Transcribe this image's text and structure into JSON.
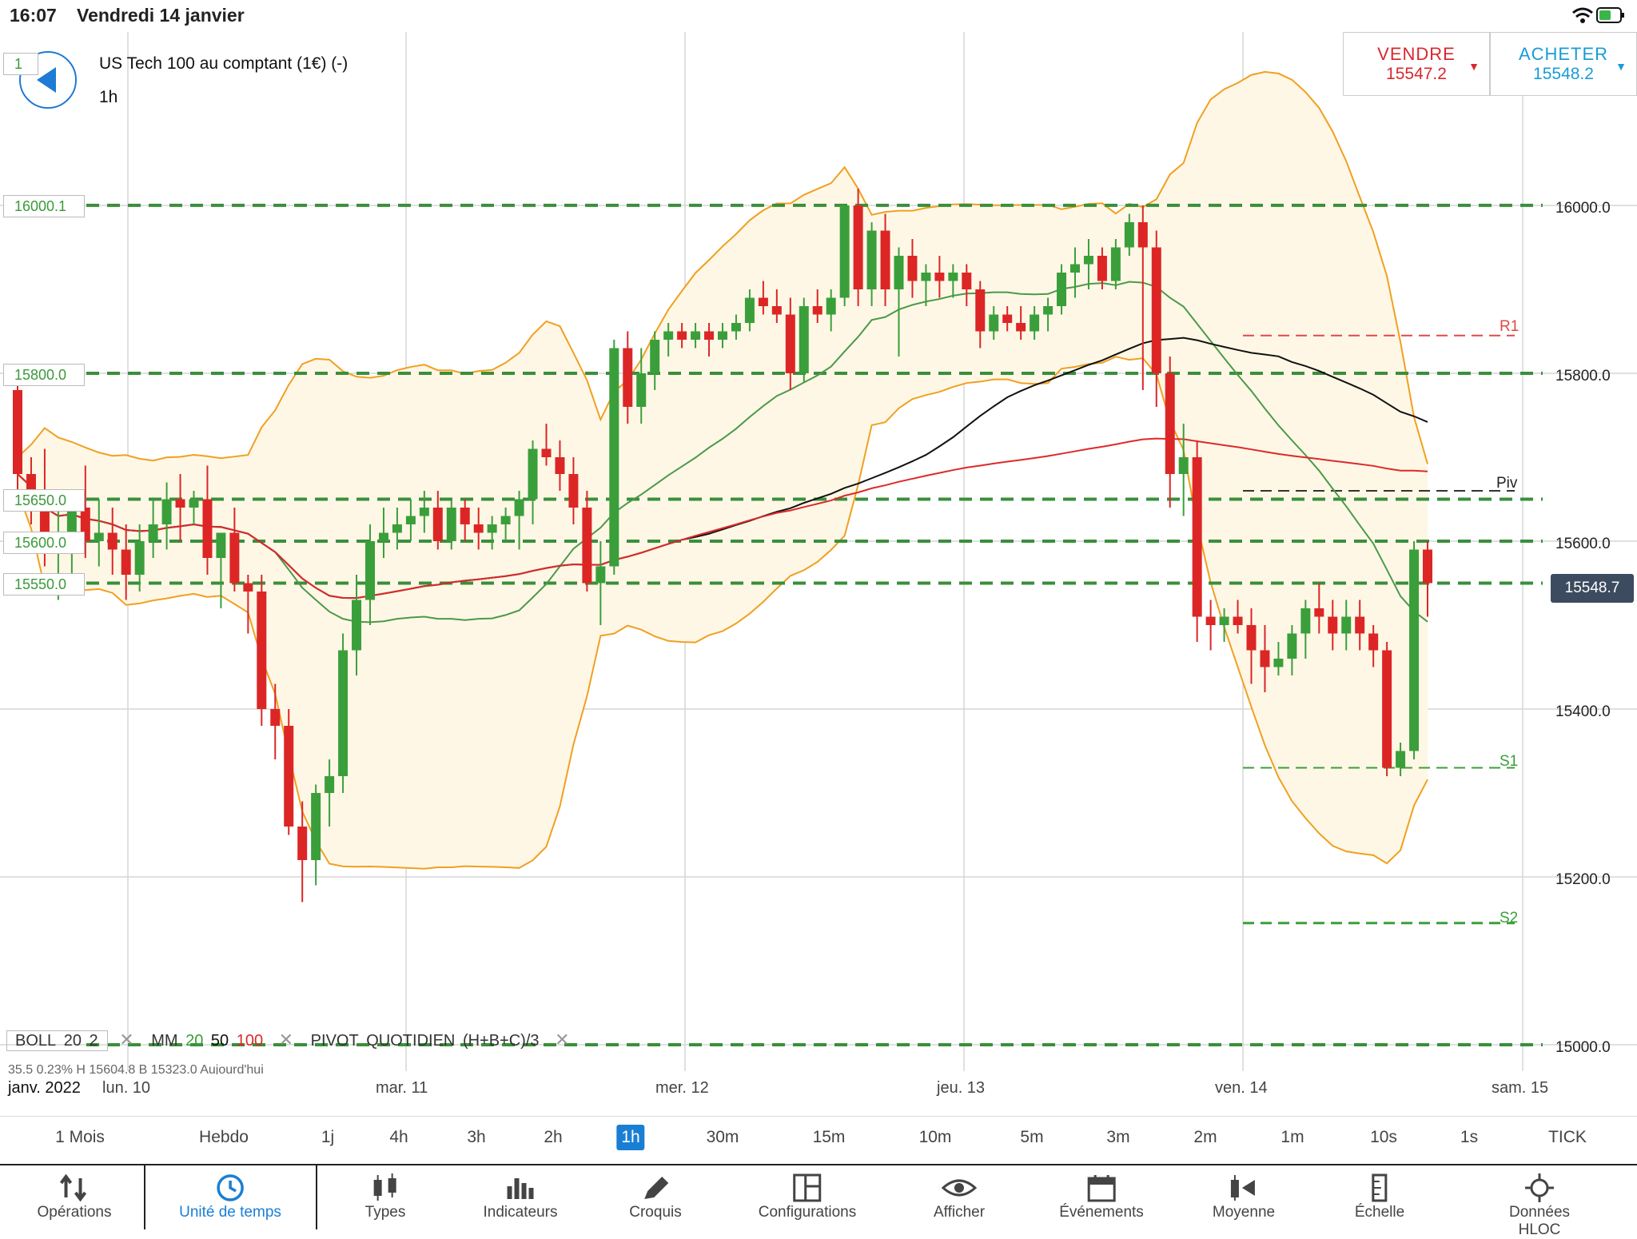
{
  "status": {
    "time": "16:07",
    "date": "Vendredi 14 janvier"
  },
  "header": {
    "instrument": "US Tech 100 au comptant (1€) (-)",
    "timeframe": "1h"
  },
  "trade": {
    "sell_label": "VENDRE",
    "sell_price": "15547.2",
    "buy_label": "ACHETER",
    "buy_price": "15548.2",
    "sell_color": "#d9272e",
    "buy_color": "#1a9bd7"
  },
  "levels_left": {
    "l1": "1",
    "l2": "16000.1",
    "l3": "15800.0",
    "l4": "15650.0",
    "l5": "15600.0",
    "l6": "15550.0"
  },
  "price_axis": {
    "p16000": "16000.0",
    "p15800": "15800.0",
    "p15600": "15600.0",
    "p15400": "15400.0",
    "p15200": "15200.0",
    "p15000": "15000.0"
  },
  "current_price": "15548.7",
  "pivots": {
    "r1": "R1",
    "piv": "Piv",
    "s1": "S1",
    "s2": "S2"
  },
  "indicators": {
    "boll": "BOLL",
    "boll_p1": "20",
    "boll_p2": "2",
    "mm": "MM",
    "mm_p1": "20",
    "mm_p2": "50",
    "mm_p3": "100",
    "pivot": "PIVOT",
    "pivot_type": "QUOTIDIEN",
    "pivot_formula": "(H+B+C)/3",
    "stats": "35.5      0.23%      H 15604.8    B 15323.0    Aujourd'hui"
  },
  "x_axis": {
    "month": "janv. 2022",
    "d1": "lun. 10",
    "d2": "mar. 11",
    "d3": "mer. 12",
    "d4": "jeu. 13",
    "d5": "ven. 14",
    "d6": "sam. 15"
  },
  "timeframes": {
    "t1": "1 Mois",
    "t2": "Hebdo",
    "t3": "1j",
    "t4": "4h",
    "t5": "3h",
    "t6": "2h",
    "t7": "1h",
    "t8": "30m",
    "t9": "15m",
    "t10": "10m",
    "t11": "5m",
    "t12": "3m",
    "t13": "2m",
    "t14": "1m",
    "t15": "10s",
    "t16": "1s",
    "t17": "TICK"
  },
  "toolbar": {
    "operations": "Opérations",
    "unite": "Unité de temps",
    "types": "Types",
    "indicateurs": "Indicateurs",
    "croquis": "Croquis",
    "configurations": "Configurations",
    "afficher": "Afficher",
    "evenements": "Événements",
    "moyenne": "Moyenne",
    "echelle": "Échelle",
    "hloc": "Données HLOC"
  },
  "colors": {
    "up": "#3a9f3a",
    "down": "#dc2626",
    "boll": "#f0a020",
    "mm20": "#4a9a4a",
    "mm50": "#111111",
    "mm100": "#dc2a2a",
    "accent": "#1a7fd4"
  },
  "chart_data": {
    "type": "candlestick",
    "timeframe": "1h",
    "y_ticks": [
      15000,
      15200,
      15400,
      15600,
      15800,
      16000
    ],
    "ylim": [
      14975,
      16200
    ],
    "horizontal_levels": [
      16000.1,
      15800.0,
      15650.0,
      15600.0,
      15550.0,
      15000.0
    ],
    "pivot_levels": {
      "R1": 15845,
      "Piv": 15660,
      "S1": 15330,
      "S2": 15145
    },
    "x_labels": [
      "lun. 10",
      "mar. 11",
      "mer. 12",
      "jeu. 13",
      "ven. 14",
      "sam. 15"
    ],
    "candles": [
      [
        15780,
        15810,
        15660,
        15680
      ],
      [
        15680,
        15700,
        15620,
        15650
      ],
      [
        15650,
        15710,
        15570,
        15590
      ],
      [
        15590,
        15650,
        15530,
        15600
      ],
      [
        15600,
        15660,
        15560,
        15640
      ],
      [
        15640,
        15690,
        15580,
        15600
      ],
      [
        15600,
        15650,
        15570,
        15610
      ],
      [
        15610,
        15640,
        15560,
        15590
      ],
      [
        15590,
        15620,
        15530,
        15560
      ],
      [
        15560,
        15620,
        15540,
        15600
      ],
      [
        15600,
        15650,
        15580,
        15620
      ],
      [
        15620,
        15670,
        15590,
        15650
      ],
      [
        15650,
        15680,
        15600,
        15640
      ],
      [
        15640,
        15660,
        15620,
        15650
      ],
      [
        15650,
        15690,
        15560,
        15580
      ],
      [
        15580,
        15610,
        15520,
        15610
      ],
      [
        15610,
        15640,
        15540,
        15550
      ],
      [
        15550,
        15560,
        15490,
        15540
      ],
      [
        15540,
        15560,
        15380,
        15400
      ],
      [
        15400,
        15430,
        15340,
        15380
      ],
      [
        15380,
        15400,
        15250,
        15260
      ],
      [
        15260,
        15290,
        15170,
        15220
      ],
      [
        15220,
        15310,
        15190,
        15300
      ],
      [
        15300,
        15340,
        15260,
        15320
      ],
      [
        15320,
        15490,
        15300,
        15470
      ],
      [
        15470,
        15560,
        15440,
        15530
      ],
      [
        15530,
        15620,
        15500,
        15600
      ],
      [
        15600,
        15640,
        15580,
        15610
      ],
      [
        15610,
        15640,
        15590,
        15620
      ],
      [
        15620,
        15650,
        15600,
        15630
      ],
      [
        15630,
        15660,
        15610,
        15640
      ],
      [
        15640,
        15660,
        15590,
        15600
      ],
      [
        15600,
        15650,
        15590,
        15640
      ],
      [
        15640,
        15650,
        15600,
        15620
      ],
      [
        15620,
        15640,
        15590,
        15610
      ],
      [
        15610,
        15630,
        15590,
        15620
      ],
      [
        15620,
        15640,
        15600,
        15630
      ],
      [
        15630,
        15660,
        15590,
        15650
      ],
      [
        15650,
        15720,
        15620,
        15710
      ],
      [
        15710,
        15740,
        15690,
        15700
      ],
      [
        15700,
        15720,
        15660,
        15680
      ],
      [
        15680,
        15700,
        15620,
        15640
      ],
      [
        15640,
        15660,
        15540,
        15550
      ],
      [
        15550,
        15600,
        15500,
        15570
      ],
      [
        15570,
        15840,
        15560,
        15830
      ],
      [
        15830,
        15850,
        15740,
        15760
      ],
      [
        15760,
        15830,
        15740,
        15800
      ],
      [
        15800,
        15850,
        15780,
        15840
      ],
      [
        15840,
        15860,
        15820,
        15850
      ],
      [
        15850,
        15860,
        15830,
        15840
      ],
      [
        15840,
        15860,
        15830,
        15850
      ],
      [
        15850,
        15860,
        15820,
        15840
      ],
      [
        15840,
        15860,
        15830,
        15850
      ],
      [
        15850,
        15870,
        15840,
        15860
      ],
      [
        15860,
        15900,
        15850,
        15890
      ],
      [
        15890,
        15910,
        15870,
        15880
      ],
      [
        15880,
        15900,
        15860,
        15870
      ],
      [
        15870,
        15890,
        15780,
        15800
      ],
      [
        15800,
        15890,
        15790,
        15880
      ],
      [
        15880,
        15900,
        15860,
        15870
      ],
      [
        15870,
        15900,
        15850,
        15890
      ],
      [
        15890,
        15990,
        15880,
        16000
      ],
      [
        16000,
        16020,
        15880,
        15900
      ],
      [
        15900,
        15980,
        15880,
        15970
      ],
      [
        15970,
        15990,
        15880,
        15900
      ],
      [
        15900,
        15950,
        15820,
        15940
      ],
      [
        15940,
        15960,
        15890,
        15910
      ],
      [
        15910,
        15930,
        15880,
        15920
      ],
      [
        15920,
        15940,
        15890,
        15910
      ],
      [
        15910,
        15930,
        15890,
        15920
      ],
      [
        15920,
        15930,
        15880,
        15900
      ],
      [
        15900,
        15910,
        15830,
        15850
      ],
      [
        15850,
        15880,
        15840,
        15870
      ],
      [
        15870,
        15880,
        15850,
        15860
      ],
      [
        15860,
        15880,
        15840,
        15850
      ],
      [
        15850,
        15880,
        15840,
        15870
      ],
      [
        15870,
        15890,
        15850,
        15880
      ],
      [
        15880,
        15930,
        15870,
        15920
      ],
      [
        15920,
        15950,
        15890,
        15930
      ],
      [
        15930,
        15960,
        15900,
        15940
      ],
      [
        15940,
        15950,
        15900,
        15910
      ],
      [
        15910,
        15960,
        15900,
        15950
      ],
      [
        15950,
        15990,
        15940,
        15980
      ],
      [
        15980,
        16000,
        15780,
        15950
      ],
      [
        15950,
        15970,
        15760,
        15800
      ],
      [
        15800,
        15820,
        15640,
        15680
      ],
      [
        15680,
        15740,
        15630,
        15700
      ],
      [
        15700,
        15720,
        15480,
        15510
      ],
      [
        15510,
        15530,
        15470,
        15500
      ],
      [
        15500,
        15520,
        15480,
        15510
      ],
      [
        15510,
        15530,
        15490,
        15500
      ],
      [
        15500,
        15520,
        15430,
        15470
      ],
      [
        15470,
        15500,
        15420,
        15450
      ],
      [
        15450,
        15480,
        15440,
        15460
      ],
      [
        15460,
        15500,
        15440,
        15490
      ],
      [
        15490,
        15530,
        15460,
        15520
      ],
      [
        15520,
        15550,
        15490,
        15510
      ],
      [
        15510,
        15530,
        15470,
        15490
      ],
      [
        15490,
        15530,
        15470,
        15510
      ],
      [
        15510,
        15530,
        15470,
        15490
      ],
      [
        15490,
        15500,
        15450,
        15470
      ],
      [
        15470,
        15480,
        15320,
        15330
      ],
      [
        15330,
        15360,
        15320,
        15350
      ],
      [
        15350,
        15600,
        15340,
        15590
      ],
      [
        15590,
        15600,
        15510,
        15550
      ]
    ],
    "indicators": {
      "BOLL": {
        "period": 20,
        "stddev": 2
      },
      "MM": {
        "periods": [
          20,
          50,
          100
        ]
      },
      "PIVOT": {
        "type": "QUOTIDIEN",
        "formula": "(H+B+C)/3"
      }
    }
  }
}
